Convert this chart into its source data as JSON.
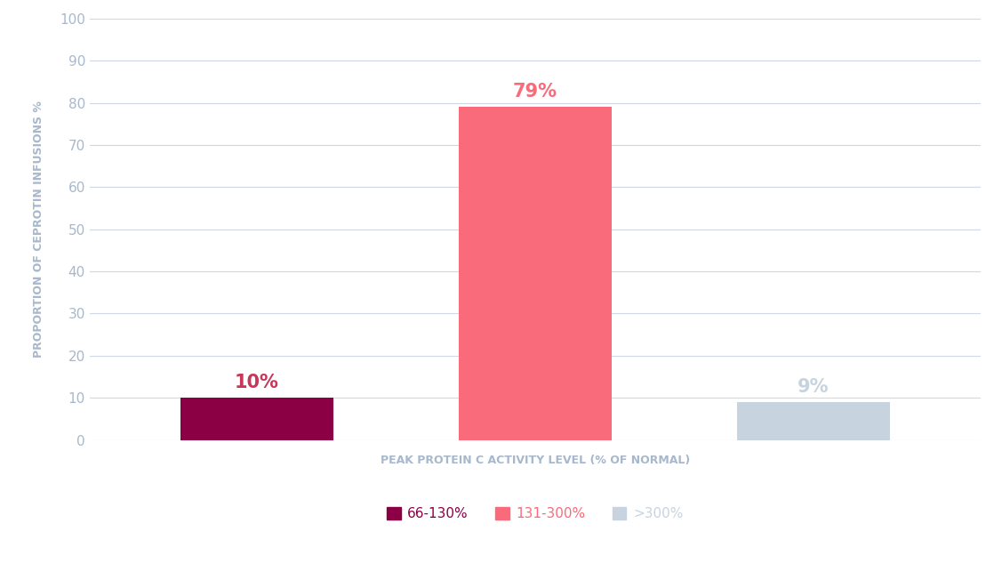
{
  "categories": [
    "66-130%",
    "131-300%",
    ">300%"
  ],
  "values": [
    10,
    79,
    9
  ],
  "bar_colors": [
    "#8B0045",
    "#F96B7B",
    "#C8D3E0"
  ],
  "bar_labels": [
    "10%",
    "79%",
    "9%"
  ],
  "bar_label_colors": [
    "#C8365A",
    "#F96B7B",
    "#C8D3E0"
  ],
  "xlabel": "PEAK PROTEIN C ACTIVITY LEVEL (% OF NORMAL)",
  "ylabel": "PROPORTION OF CEPROTIN INFUSIONS %",
  "ylim": [
    0,
    100
  ],
  "yticks": [
    0,
    10,
    20,
    30,
    40,
    50,
    60,
    70,
    80,
    90,
    100
  ],
  "background_color": "#FFFFFF",
  "grid_color": "#D0D8E8",
  "tick_color": "#A8B8CC",
  "axis_label_color": "#A8B8CC",
  "axis_label_fontsize": 9,
  "bar_label_fontsize": 15,
  "legend_labels": [
    "66-130%",
    "131-300%",
    ">300%"
  ],
  "legend_colors": [
    "#8B0045",
    "#F96B7B",
    "#C8D3E0"
  ]
}
